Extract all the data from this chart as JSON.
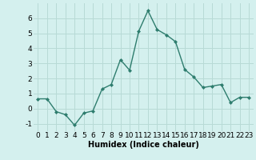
{
  "x": [
    0,
    1,
    2,
    3,
    4,
    5,
    6,
    7,
    8,
    9,
    10,
    11,
    12,
    13,
    14,
    15,
    16,
    17,
    18,
    19,
    20,
    21,
    22,
    23
  ],
  "y": [
    0.65,
    0.65,
    -0.2,
    -0.4,
    -1.1,
    -0.3,
    -0.15,
    1.3,
    1.6,
    3.25,
    2.55,
    5.15,
    6.5,
    5.25,
    4.9,
    4.45,
    2.6,
    2.1,
    1.4,
    1.5,
    1.6,
    0.4,
    0.75,
    0.75
  ],
  "line_color": "#2e7d6e",
  "marker": "D",
  "marker_size": 2.0,
  "bg_color": "#d4f0ee",
  "grid_color": "#b8dad6",
  "xlabel": "Humidex (Indice chaleur)",
  "ylim": [
    -1.5,
    7.0
  ],
  "xlim": [
    -0.5,
    23.5
  ],
  "yticks": [
    -1,
    0,
    1,
    2,
    3,
    4,
    5,
    6
  ],
  "xticks": [
    0,
    1,
    2,
    3,
    4,
    5,
    6,
    7,
    8,
    9,
    10,
    11,
    12,
    13,
    14,
    15,
    16,
    17,
    18,
    19,
    20,
    21,
    22,
    23
  ],
  "xlabel_fontsize": 7,
  "tick_fontsize": 6.5,
  "line_width": 1.0
}
